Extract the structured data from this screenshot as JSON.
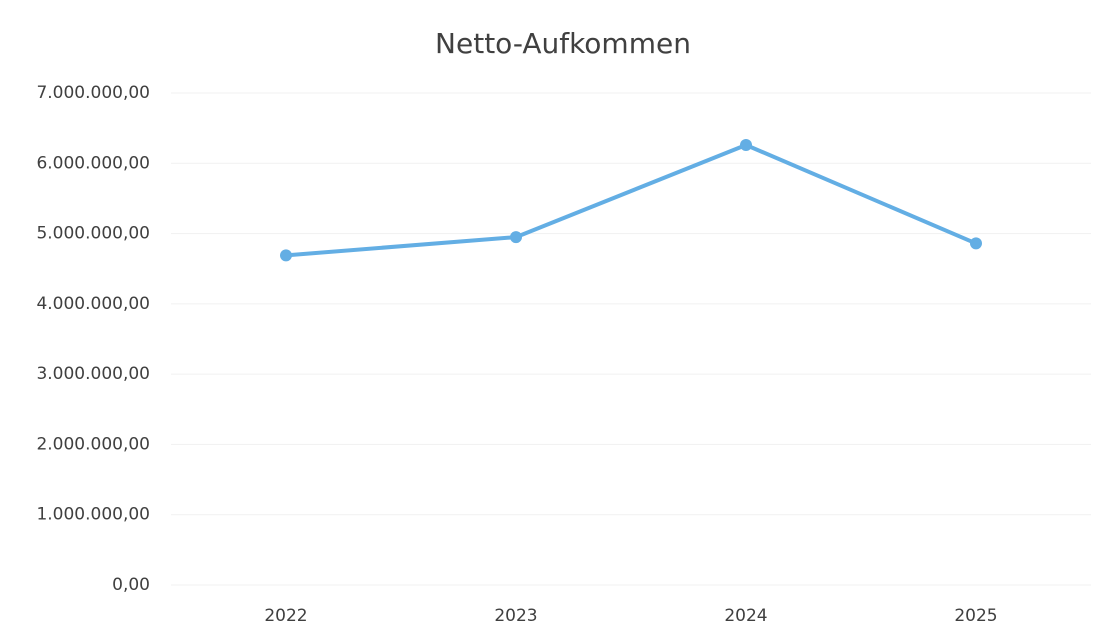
{
  "chart_data": {
    "type": "line",
    "title": "Netto-Aufkommen",
    "categories": [
      "2022",
      "2023",
      "2024",
      "2025"
    ],
    "series": [
      {
        "name": "Netto-Aufkommen",
        "color": "#63aee4",
        "values": [
          4690000,
          4950000,
          6260000,
          4860000
        ]
      }
    ],
    "ylim": [
      0,
      7000000
    ],
    "yticks": [
      {
        "value": 0,
        "label": "0,00"
      },
      {
        "value": 1000000,
        "label": "1.000.000,00"
      },
      {
        "value": 2000000,
        "label": "2.000.000,00"
      },
      {
        "value": 3000000,
        "label": "3.000.000,00"
      },
      {
        "value": 4000000,
        "label": "4.000.000,00"
      },
      {
        "value": 5000000,
        "label": "5.000.000,00"
      },
      {
        "value": 6000000,
        "label": "6.000.000,00"
      },
      {
        "value": 7000000,
        "label": "7.000.000,00"
      }
    ],
    "grid": true
  }
}
